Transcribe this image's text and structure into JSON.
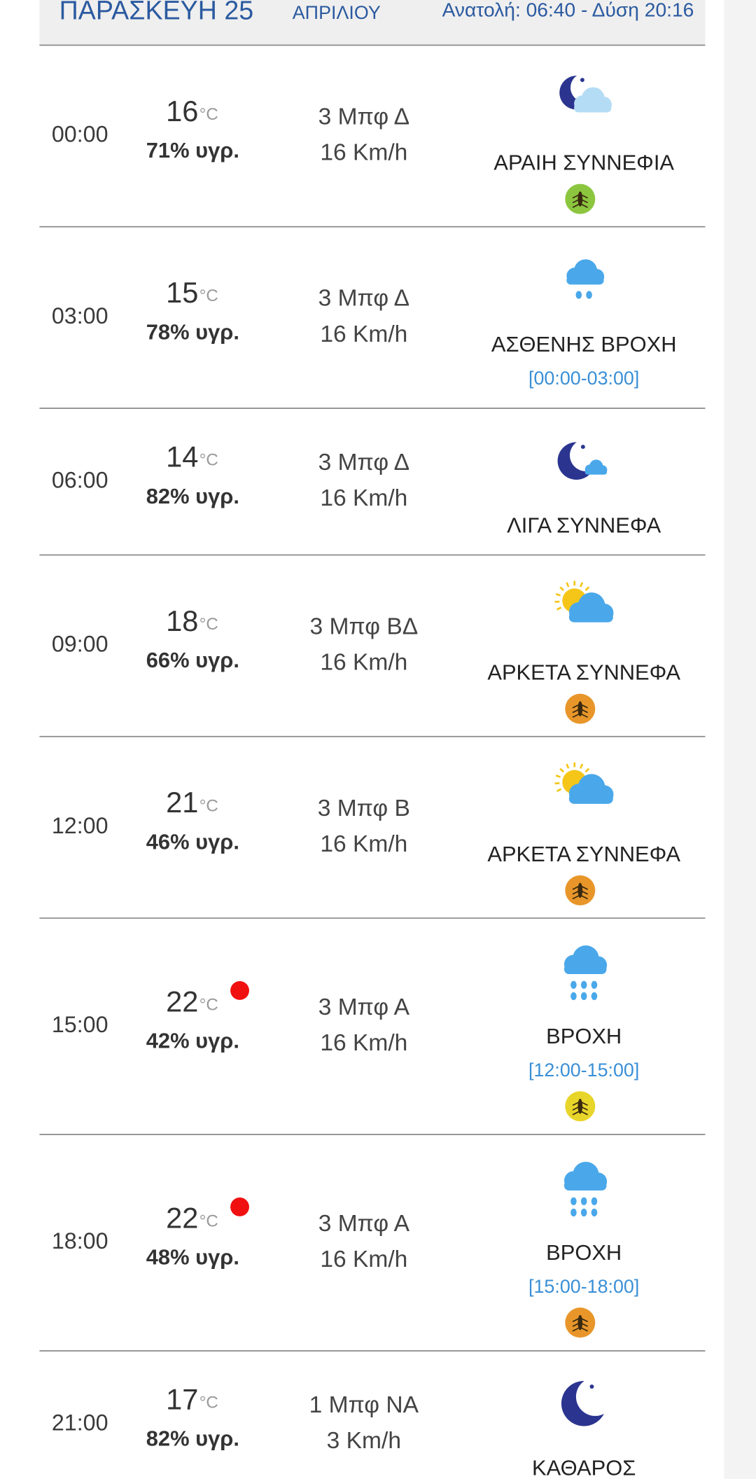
{
  "header": {
    "day": "ΠΑΡΑΣΚΕΥΗ 25",
    "month": "ΑΠΡΙΛΙΟΥ",
    "sun": "Ανατολή: 06:40  - Δύση 20:16"
  },
  "temperature_unit": "°C",
  "rows": [
    {
      "time": "00:00",
      "temperature": 16,
      "humidity": "71% υγρ.",
      "wind": "3 Μπφ Δ",
      "speed": "16 Km/h",
      "description": "ΑΡΑΙΗ ΣΥΝΝΕΦΙΑ",
      "icon": "moon-cloud",
      "mosquito": "#8cc63f"
    },
    {
      "time": "03:00",
      "temperature": 15,
      "humidity": "78% υγρ.",
      "wind": "3 Μπφ Δ",
      "speed": "16 Km/h",
      "description": "ΑΣΘΕΝΗΣ ΒΡΟΧΗ",
      "interval": "[00:00-03:00]",
      "icon": "light-rain"
    },
    {
      "time": "06:00",
      "temperature": 14,
      "humidity": "82% υγρ.",
      "wind": "3 Μπφ Δ",
      "speed": "16 Km/h",
      "description": "ΛΙΓΑ ΣΥΝΝΕΦΑ",
      "icon": "moon-small-cloud"
    },
    {
      "time": "09:00",
      "temperature": 18,
      "humidity": "66% υγρ.",
      "wind": "3 Μπφ ΒΔ",
      "speed": "16 Km/h",
      "description": "ΑΡΚΕΤΑ ΣΥΝΝΕΦΑ",
      "icon": "sun-cloud",
      "mosquito": "#e8962a"
    },
    {
      "time": "12:00",
      "temperature": 21,
      "humidity": "46% υγρ.",
      "wind": "3 Μπφ Β",
      "speed": "16 Km/h",
      "description": "ΑΡΚΕΤΑ ΣΥΝΝΕΦΑ",
      "icon": "sun-cloud",
      "mosquito": "#e8962a"
    },
    {
      "time": "15:00",
      "temperature": 22,
      "humidity": "42% υγρ.",
      "wind": "3 Μπφ Α",
      "speed": "16 Km/h",
      "description": "ΒΡΟΧΗ",
      "interval": "[12:00-15:00]",
      "icon": "rain",
      "alert": true,
      "mosquito": "#e8d52a"
    },
    {
      "time": "18:00",
      "temperature": 22,
      "humidity": "48% υγρ.",
      "wind": "3 Μπφ Α",
      "speed": "16 Km/h",
      "description": "ΒΡΟΧΗ",
      "interval": "[15:00-18:00]",
      "icon": "rain",
      "alert": true,
      "mosquito": "#e8962a"
    },
    {
      "time": "21:00",
      "temperature": 17,
      "humidity": "82% υγρ.",
      "wind": "1 Μπφ ΝΑ",
      "speed": "3 Km/h",
      "description": "ΚΑΘΑΡΟΣ",
      "icon": "moon"
    }
  ]
}
